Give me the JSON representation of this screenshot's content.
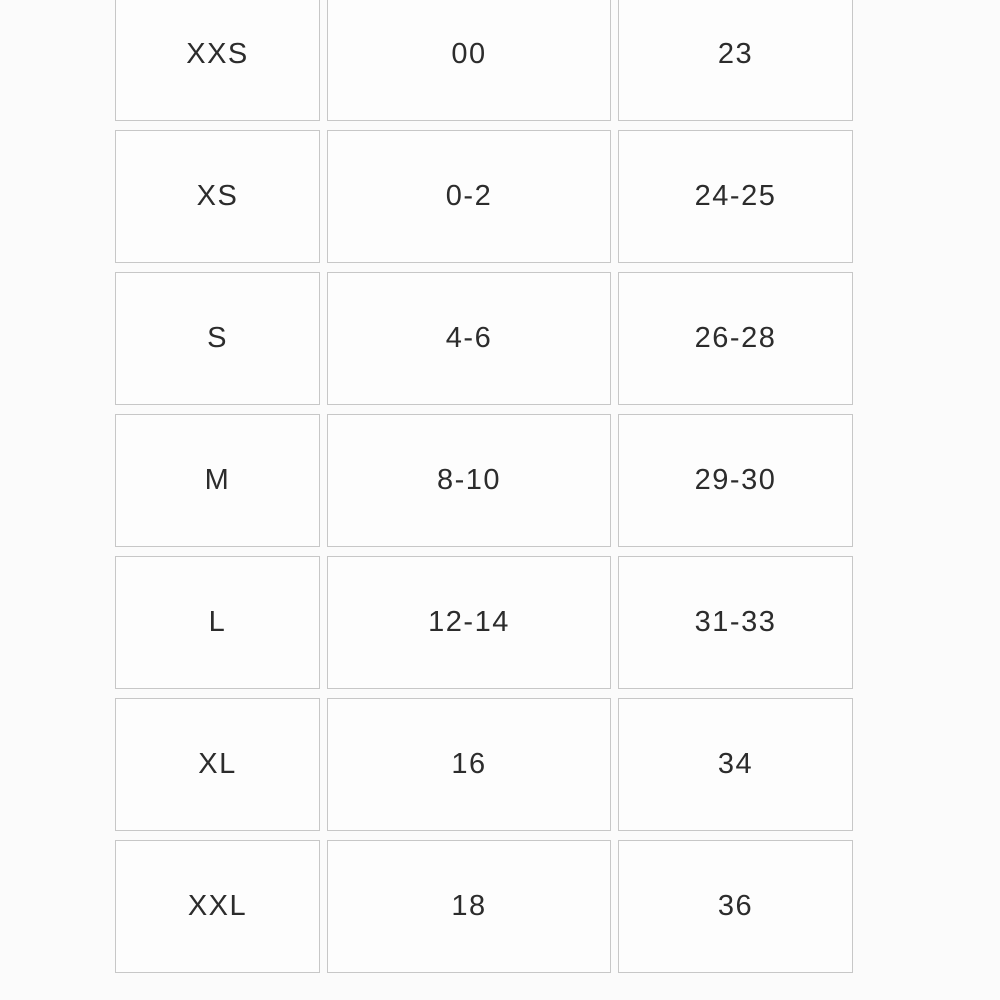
{
  "page": {
    "background_color": "#fbfbfb"
  },
  "table": {
    "border_color": "#c7c7c7",
    "cell_background": "#fdfdfd",
    "text_color": "#2c2c2c",
    "rows": [
      [
        "XXS",
        "00",
        "23"
      ],
      [
        "XS",
        "0-2",
        "24-25"
      ],
      [
        "S",
        "4-6",
        "26-28"
      ],
      [
        "M",
        "8-10",
        "29-30"
      ],
      [
        "L",
        "12-14",
        "31-33"
      ],
      [
        "XL",
        "16",
        "34"
      ],
      [
        "XXL",
        "18",
        "36"
      ]
    ]
  },
  "chart_data": {
    "type": "table",
    "rows": [
      [
        "XXS",
        "00",
        "23"
      ],
      [
        "XS",
        "0-2",
        "24-25"
      ],
      [
        "S",
        "4-6",
        "26-28"
      ],
      [
        "M",
        "8-10",
        "29-30"
      ],
      [
        "L",
        "12-14",
        "31-33"
      ],
      [
        "XL",
        "16",
        "34"
      ],
      [
        "XXL",
        "18",
        "36"
      ]
    ]
  }
}
